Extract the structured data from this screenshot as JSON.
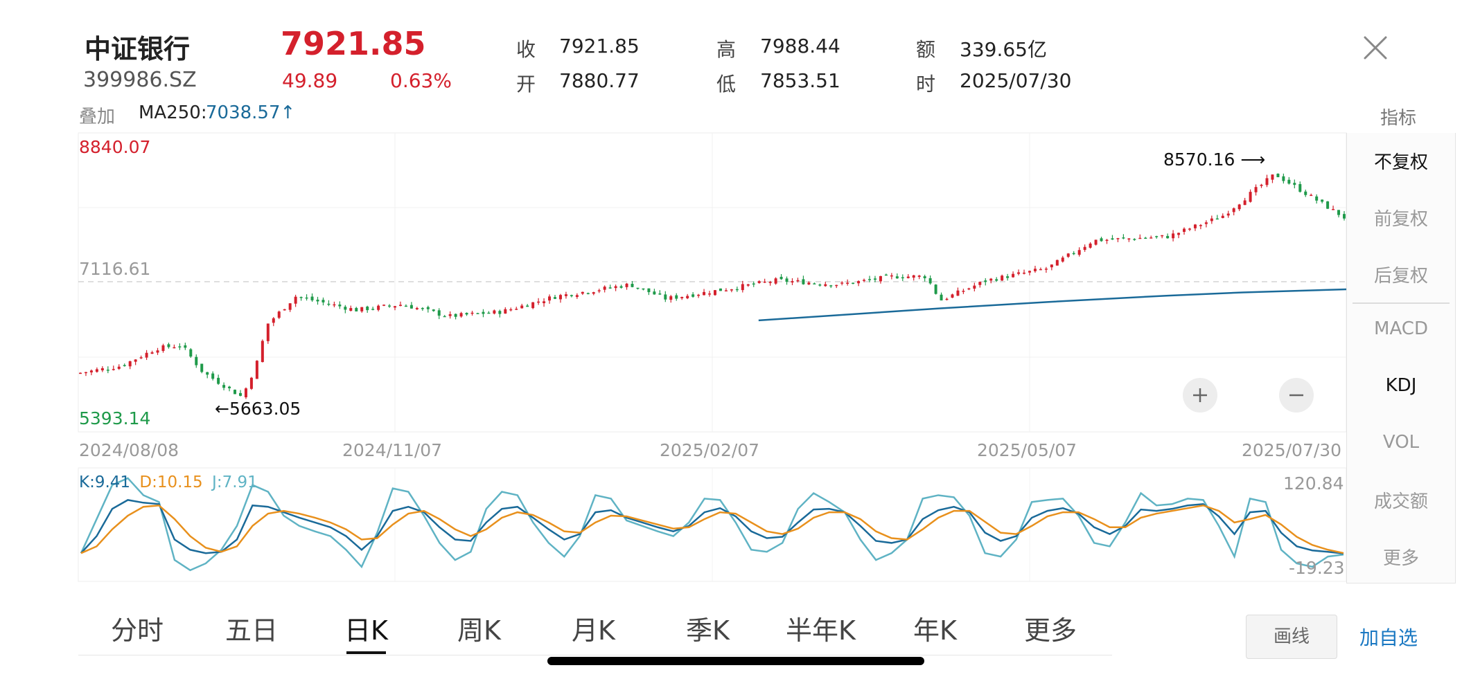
{
  "stock": {
    "name": "中证银行",
    "code": "399986.SZ",
    "price": "7921.85",
    "change": "49.89",
    "change_pct": "0.63%"
  },
  "quote_fields": [
    {
      "label": "收",
      "value": "7921.85"
    },
    {
      "label": "开",
      "value": "7880.77"
    },
    {
      "label": "高",
      "value": "7988.44"
    },
    {
      "label": "低",
      "value": "7853.51"
    },
    {
      "label": "额",
      "value": "339.65亿"
    },
    {
      "label": "时",
      "value": "2025/07/30"
    }
  ],
  "overlay": {
    "label": "叠加",
    "ma_name": "MA250:",
    "ma_value": "7038.57",
    "ma_arrow": "↑"
  },
  "side_panel": {
    "title": "指标",
    "items": [
      "不复权",
      "前复权",
      "后复权",
      "MACD",
      "KDJ",
      "VOL",
      "成交额",
      "更多"
    ],
    "active": [
      "不复权",
      "KDJ"
    ]
  },
  "tabs": {
    "items": [
      "分时",
      "五日",
      "日K",
      "周K",
      "月K",
      "季K",
      "半年K",
      "年K",
      "更多"
    ],
    "active": "日K"
  },
  "buttons": {
    "draw": "画线",
    "add_watch": "加自选"
  },
  "icons": {
    "close": "close-icon",
    "zoom_in": "plus-icon",
    "zoom_out": "minus-icon"
  },
  "colors": {
    "up": "#d4202c",
    "down": "#1f9a4a",
    "ma": "#1a6a99",
    "k": "#1a6a99",
    "d": "#e8901c",
    "j": "#5fb3c4"
  },
  "chart_data": [
    {
      "type": "candlestick",
      "y_max_label": "8840.07",
      "y_min_label": "5393.14",
      "ref_level_label": "7116.61",
      "ref_level": 7116.61,
      "ylim": [
        5393.14,
        8840.07
      ],
      "x_ticks": [
        "2024/08/08",
        "2024/11/07",
        "2025/02/07",
        "2025/05/07",
        "2025/07/30"
      ],
      "annotations": [
        {
          "text": "←5663.05",
          "value": 5663.05,
          "date": "2024/09/23"
        },
        {
          "text": "8570.16 ⟶",
          "value": 8570.16,
          "date": "2025/07/10"
        }
      ],
      "close_series": [
        {
          "date": "2024/08/08",
          "close": 5990
        },
        {
          "date": "2024/08/20",
          "close": 6080
        },
        {
          "date": "2024/08/30",
          "close": 6300
        },
        {
          "date": "2024/09/06",
          "close": 6340
        },
        {
          "date": "2024/09/12",
          "close": 6000
        },
        {
          "date": "2024/09/23",
          "close": 5690
        },
        {
          "date": "2024/09/27",
          "close": 6100
        },
        {
          "date": "2024/09/30",
          "close": 6600
        },
        {
          "date": "2024/10/08",
          "close": 6950
        },
        {
          "date": "2024/10/15",
          "close": 6880
        },
        {
          "date": "2024/10/25",
          "close": 6780
        },
        {
          "date": "2024/11/07",
          "close": 6850
        },
        {
          "date": "2024/11/20",
          "close": 6700
        },
        {
          "date": "2024/12/05",
          "close": 6760
        },
        {
          "date": "2024/12/20",
          "close": 6950
        },
        {
          "date": "2025/01/10",
          "close": 7100
        },
        {
          "date": "2025/01/20",
          "close": 6920
        },
        {
          "date": "2025/02/07",
          "close": 7050
        },
        {
          "date": "2025/02/20",
          "close": 7150
        },
        {
          "date": "2025/03/10",
          "close": 7100
        },
        {
          "date": "2025/03/25",
          "close": 7200
        },
        {
          "date": "2025/04/03",
          "close": 7200
        },
        {
          "date": "2025/04/07",
          "close": 6900
        },
        {
          "date": "2025/04/20",
          "close": 7150
        },
        {
          "date": "2025/05/07",
          "close": 7300
        },
        {
          "date": "2025/05/20",
          "close": 7650
        },
        {
          "date": "2025/06/10",
          "close": 7700
        },
        {
          "date": "2025/06/25",
          "close": 7950
        },
        {
          "date": "2025/07/10",
          "close": 8480
        },
        {
          "date": "2025/07/20",
          "close": 8200
        },
        {
          "date": "2025/07/30",
          "close": 7921.85
        }
      ],
      "ma250_series": [
        {
          "date": "2025/02/15",
          "value": 6650
        },
        {
          "date": "2025/04/07",
          "value": 6800
        },
        {
          "date": "2025/05/07",
          "value": 6880
        },
        {
          "date": "2025/06/10",
          "value": 6960
        },
        {
          "date": "2025/07/01",
          "value": 7000
        },
        {
          "date": "2025/07/30",
          "value": 7038.57
        }
      ]
    },
    {
      "type": "line",
      "legend": [
        {
          "name": "K",
          "value": "9.41"
        },
        {
          "name": "D",
          "value": "10.15"
        },
        {
          "name": "J",
          "value": "7.91"
        }
      ],
      "y_max_label": "120.84",
      "y_min_label": "-19.23",
      "ylim": [
        -19.23,
        120.84
      ],
      "series": [
        {
          "name": "K",
          "values": [
            10,
            35,
            75,
            88,
            84,
            82,
            30,
            15,
            10,
            12,
            30,
            80,
            78,
            70,
            62,
            55,
            48,
            35,
            15,
            35,
            72,
            78,
            70,
            48,
            30,
            28,
            55,
            75,
            78,
            62,
            45,
            30,
            38,
            70,
            73,
            62,
            55,
            48,
            42,
            50,
            70,
            76,
            64,
            42,
            32,
            34,
            55,
            74,
            75,
            70,
            50,
            28,
            25,
            30,
            60,
            73,
            78,
            70,
            40,
            28,
            35,
            62,
            72,
            76,
            68,
            48,
            38,
            50,
            74,
            72,
            75,
            80,
            82,
            64,
            38,
            70,
            72,
            40,
            20,
            14,
            12,
            9.41
          ]
        },
        {
          "name": "D",
          "values": [
            10,
            20,
            45,
            65,
            78,
            80,
            60,
            35,
            18,
            12,
            20,
            50,
            68,
            72,
            68,
            62,
            55,
            45,
            30,
            32,
            52,
            68,
            72,
            60,
            45,
            35,
            45,
            62,
            70,
            66,
            55,
            42,
            40,
            55,
            65,
            64,
            58,
            52,
            46,
            48,
            60,
            70,
            68,
            55,
            42,
            38,
            46,
            62,
            70,
            70,
            60,
            42,
            32,
            30,
            45,
            62,
            72,
            72,
            56,
            40,
            38,
            50,
            64,
            70,
            70,
            60,
            48,
            48,
            62,
            68,
            72,
            76,
            80,
            72,
            55,
            60,
            66,
            52,
            34,
            22,
            15,
            10.15
          ]
        },
        {
          "name": "J",
          "values": [
            10,
            60,
            110,
            120,
            95,
            85,
            0,
            -15,
            -5,
            15,
            50,
            110,
            100,
            65,
            50,
            42,
            35,
            15,
            -10,
            40,
            105,
            100,
            65,
            25,
            0,
            12,
            75,
            100,
            95,
            55,
            25,
            5,
            35,
            95,
            90,
            58,
            50,
            42,
            35,
            55,
            90,
            88,
            55,
            15,
            12,
            25,
            75,
            98,
            85,
            70,
            30,
            0,
            10,
            30,
            90,
            95,
            92,
            65,
            10,
            5,
            30,
            85,
            88,
            90,
            65,
            25,
            20,
            55,
            98,
            80,
            82,
            90,
            88,
            50,
            5,
            90,
            85,
            15,
            -5,
            -10,
            5,
            7.91
          ]
        }
      ]
    }
  ]
}
